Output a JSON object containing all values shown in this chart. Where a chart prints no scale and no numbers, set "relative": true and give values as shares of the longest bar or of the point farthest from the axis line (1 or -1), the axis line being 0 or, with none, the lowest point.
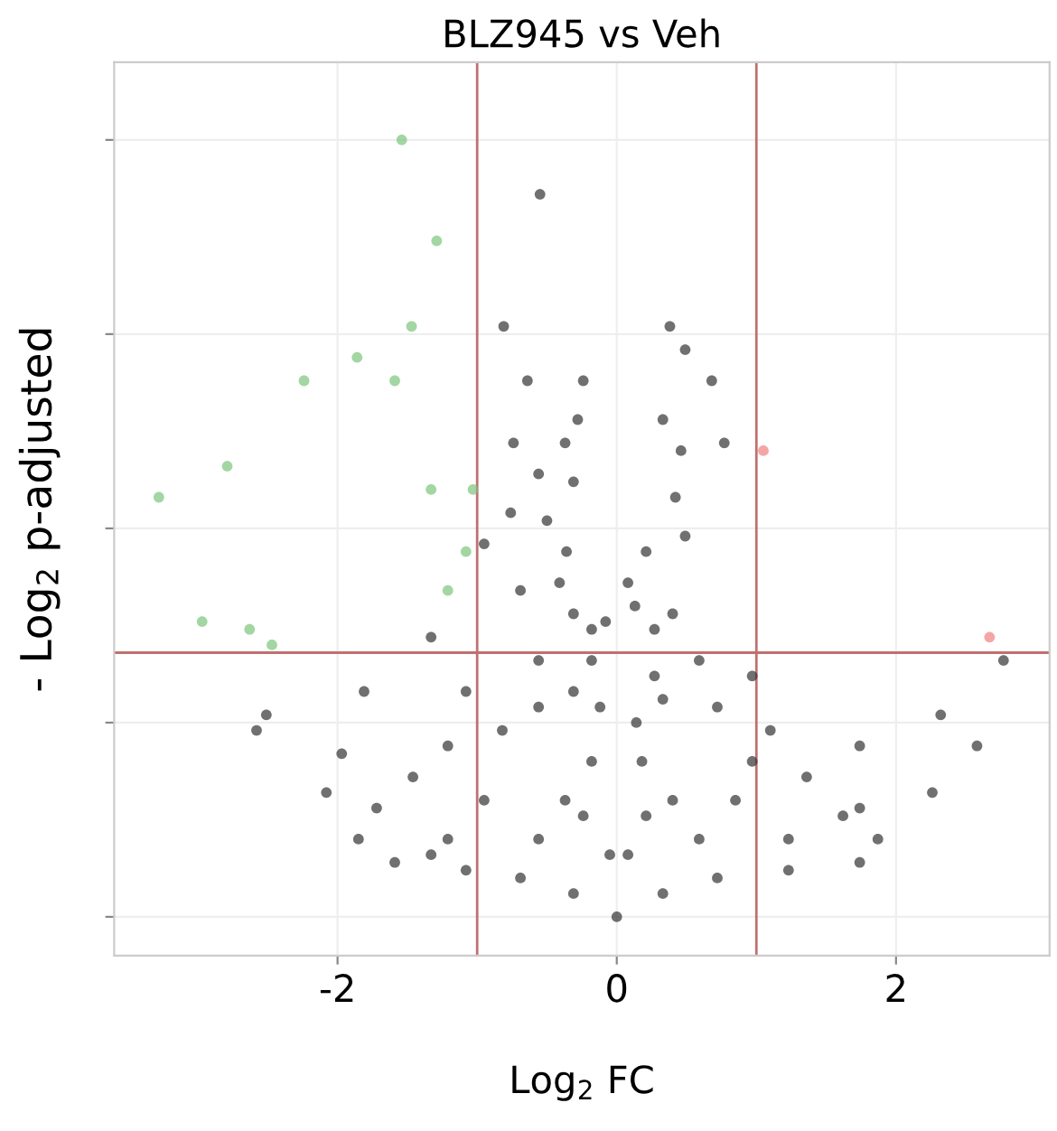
{
  "chart_data": {
    "type": "scatter",
    "title": "BLZ945 vs Veh",
    "xlabel": "Log$_{2}$ FC",
    "ylabel": "- Log$_{2}$ p-adjusted",
    "relative": true,
    "xlim": [
      -3.6,
      3.1
    ],
    "xticks": [
      {
        "value": -2,
        "label": "-2"
      },
      0,
      2
    ],
    "grid": true,
    "marker": "circle",
    "legend": false,
    "tick_labels": "x",
    "ref_lines": [
      {
        "axis": "x",
        "value": -1,
        "color": "#c07070"
      },
      {
        "axis": "x",
        "value": 1,
        "color": "#c07070"
      },
      {
        "axis": "y",
        "value": 0.34,
        "color": "#c07070"
      }
    ],
    "series": [
      {
        "color": "#333333",
        "x": [
          -0.55,
          -0.81,
          0.38,
          0.49,
          0.68,
          -0.64,
          -0.24,
          -0.28,
          0.33,
          0.77,
          -0.74,
          -0.37,
          0.46,
          -0.56,
          -0.31,
          0.42,
          -0.76,
          -0.5,
          0.49,
          -0.95,
          -0.36,
          0.21,
          -0.69,
          -0.31,
          0.4,
          0.08,
          2.77,
          -1.33,
          -1.81,
          -2.51,
          -2.58,
          2.32,
          2.58,
          -1.97,
          1.74,
          -1.08,
          0.97,
          1.1,
          -0.56,
          0.59,
          -0.18,
          0.27,
          -2.08,
          2.26,
          -1.72,
          1.74,
          -1.46,
          1.36,
          -1.21,
          -0.82,
          -0.56,
          -0.31,
          -0.12,
          0.14,
          0.33,
          0.72,
          0.97,
          -1.85,
          -1.21,
          -0.56,
          -0.05,
          0.08,
          0.59,
          1.23,
          1.87,
          1.62,
          -1.59,
          -1.08,
          -0.69,
          -0.31,
          0,
          0.33,
          0.72,
          1.23,
          1.74,
          -1.33,
          -0.24,
          0.21,
          -0.18,
          0.18,
          -0.37,
          0.4,
          -0.95,
          0.85,
          -0.18,
          -0.41,
          0.27,
          0.13,
          -0.08
        ],
        "values": [
          0.93,
          0.76,
          0.76,
          0.73,
          0.69,
          0.69,
          0.69,
          0.64,
          0.64,
          0.61,
          0.61,
          0.61,
          0.6,
          0.57,
          0.56,
          0.54,
          0.52,
          0.51,
          0.49,
          0.48,
          0.47,
          0.47,
          0.42,
          0.39,
          0.39,
          0.43,
          0.33,
          0.36,
          0.29,
          0.26,
          0.24,
          0.26,
          0.22,
          0.21,
          0.22,
          0.29,
          0.31,
          0.24,
          0.33,
          0.33,
          0.33,
          0.31,
          0.16,
          0.16,
          0.14,
          0.14,
          0.18,
          0.18,
          0.22,
          0.24,
          0.27,
          0.29,
          0.27,
          0.25,
          0.28,
          0.27,
          0.2,
          0.1,
          0.1,
          0.1,
          0.08,
          0.08,
          0.1,
          0.1,
          0.1,
          0.13,
          0.07,
          0.06,
          0.05,
          0.03,
          0,
          0.03,
          0.05,
          0.06,
          0.07,
          0.08,
          0.13,
          0.13,
          0.2,
          0.2,
          0.15,
          0.15,
          0.15,
          0.15,
          0.37,
          0.43,
          0.37,
          0.4,
          0.38
        ]
      },
      {
        "color": "#7cc47c",
        "x": [
          -1.54,
          -1.29,
          -1.47,
          -1.86,
          -1.59,
          -2.24,
          -2.79,
          -3.28,
          -1.33,
          -1.03,
          -1.08,
          -1.21,
          -2.97,
          -2.63,
          -2.47
        ],
        "values": [
          1.0,
          0.87,
          0.76,
          0.72,
          0.69,
          0.69,
          0.58,
          0.54,
          0.55,
          0.55,
          0.47,
          0.42,
          0.38,
          0.37,
          0.35
        ]
      },
      {
        "color": "#f08080",
        "x": [
          1.05,
          2.67
        ],
        "values": [
          0.6,
          0.36
        ]
      }
    ]
  }
}
